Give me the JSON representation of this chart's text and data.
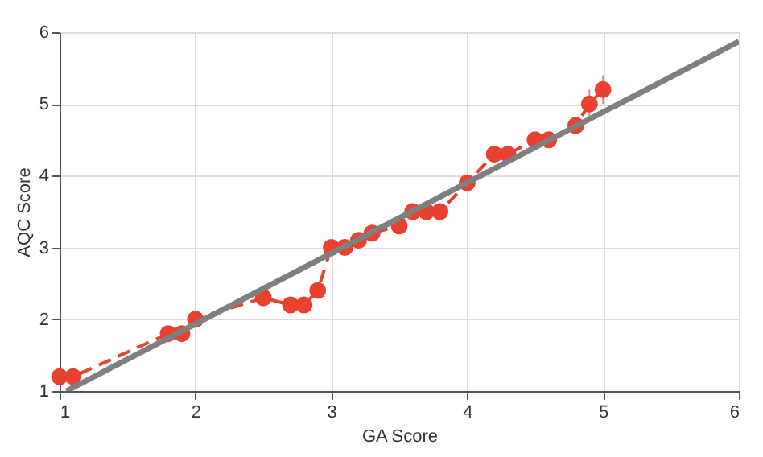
{
  "chart_data": {
    "type": "line",
    "xlabel": "GA Score",
    "ylabel": "AQC Score",
    "xlim": [
      1,
      6
    ],
    "xticks": [
      1,
      2,
      3,
      4,
      5,
      6
    ],
    "ylim": [
      1,
      6
    ],
    "yticks": [
      1,
      2,
      3,
      4,
      5,
      6
    ],
    "grid": true,
    "series": [
      {
        "color": "#e8412f",
        "marker": "circle",
        "line_style": "dashed",
        "x": [
          1.0,
          1.1,
          1.8,
          1.9,
          2.0,
          2.5,
          2.7,
          2.8,
          2.9,
          3.0,
          3.1,
          3.2,
          3.3,
          3.5,
          3.6,
          3.7,
          3.8,
          4.0,
          4.2,
          4.3,
          4.5,
          4.6,
          4.8,
          4.9,
          5.0
        ],
        "values": [
          1.2,
          1.2,
          1.8,
          1.8,
          2.0,
          2.3,
          2.2,
          2.2,
          2.4,
          3.0,
          3.0,
          3.1,
          3.2,
          3.3,
          3.5,
          3.5,
          3.5,
          3.9,
          4.3,
          4.3,
          4.5,
          4.5,
          4.7,
          5.0,
          5.2
        ],
        "errors": [
          0.1,
          0.1,
          0.1,
          0.1,
          0.1,
          0.1,
          0.1,
          0.1,
          0.1,
          0.1,
          0.1,
          0.1,
          0.1,
          0.1,
          0.1,
          0.1,
          0.1,
          0.1,
          0.1,
          0.1,
          0.1,
          0.1,
          0.1,
          0.2,
          0.2
        ]
      },
      {
        "color": "#7f7f7f",
        "marker": "none",
        "line_style": "solid",
        "x": [
          1.05,
          6.0
        ],
        "values": [
          1.0,
          5.87
        ]
      }
    ]
  }
}
